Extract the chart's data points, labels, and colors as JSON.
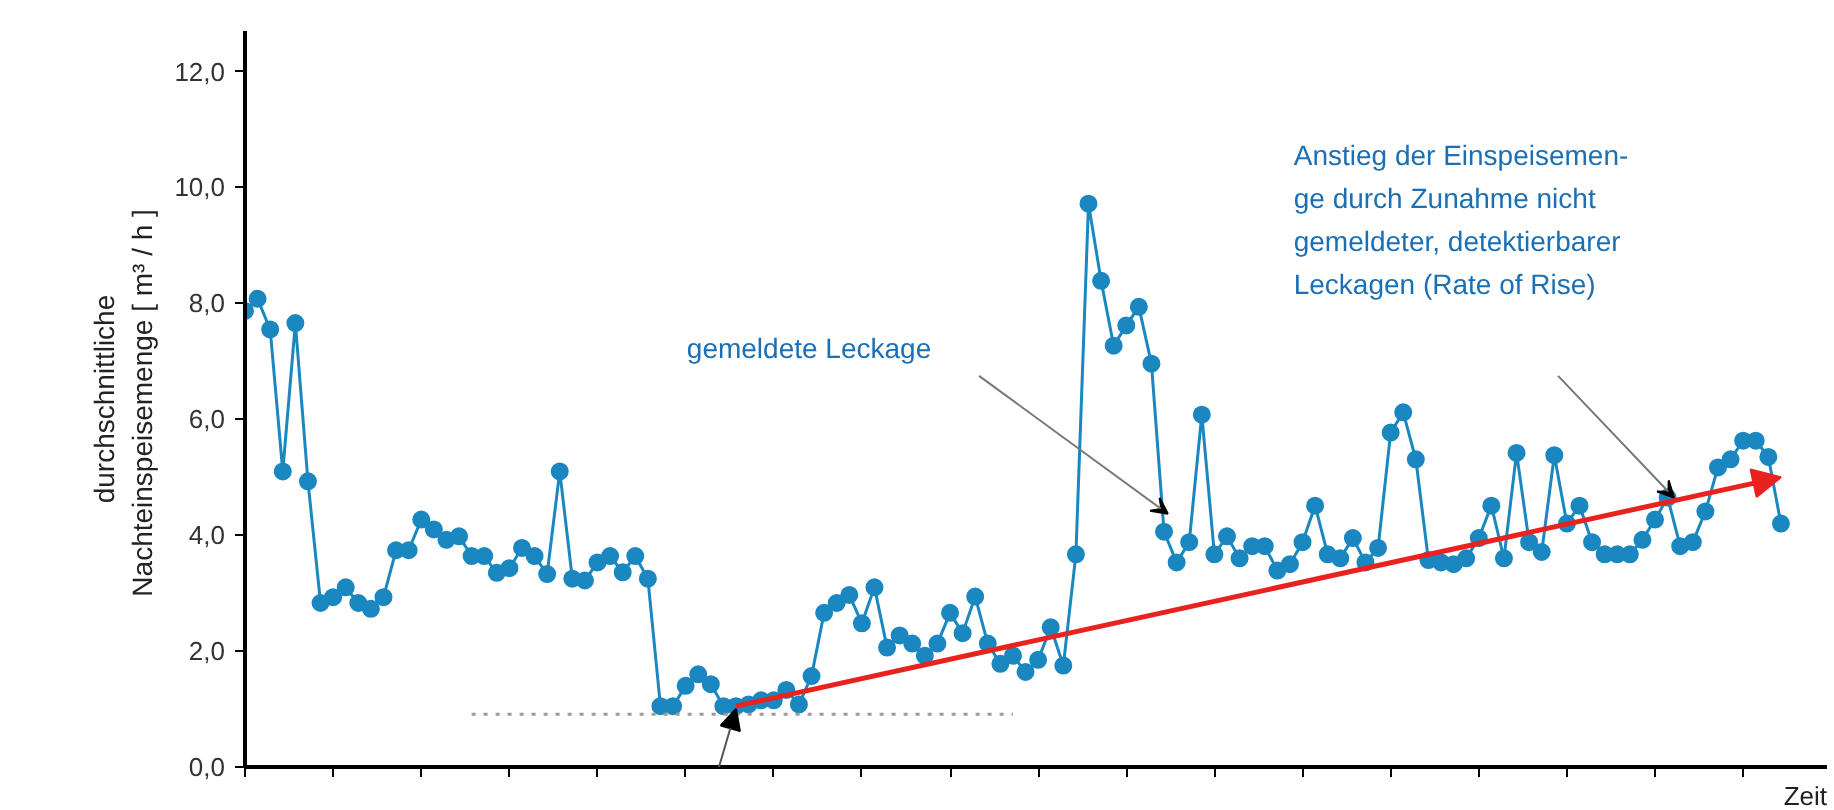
{
  "chart_data": {
    "type": "line",
    "ylabel": "durchschnittliche\nNachteinspeisemenge  [ m³ / h ]",
    "xlabel": "Zeit",
    "categories": [
      null,
      null,
      null,
      null,
      null,
      null,
      null,
      null,
      null,
      null,
      null,
      null,
      null,
      null,
      null,
      null,
      null,
      null,
      null,
      null,
      null,
      null,
      null,
      null,
      null,
      null,
      null,
      null,
      null,
      null,
      null,
      null,
      null,
      null,
      null,
      null,
      null,
      null,
      null,
      null,
      null,
      null,
      null,
      null,
      null,
      null,
      null,
      null,
      null,
      null,
      null,
      null,
      null,
      null,
      null,
      null,
      null,
      null,
      null,
      null,
      null,
      null,
      null,
      null,
      null,
      null,
      null,
      null,
      null,
      null,
      null,
      null,
      null,
      null,
      null,
      null,
      null,
      null,
      null,
      null,
      null,
      null,
      null,
      null,
      null,
      null,
      null,
      null,
      null,
      null,
      null,
      null,
      null,
      null,
      null,
      null,
      null,
      null,
      null,
      null,
      null,
      null,
      null,
      null,
      null,
      null,
      null,
      null,
      null,
      null,
      null,
      null,
      null,
      null,
      null,
      null,
      null,
      null,
      null,
      null,
      null,
      null,
      null
    ],
    "series": [
      {
        "color": "#1a87c0",
        "values": [
          7.87,
          8.08,
          7.55,
          5.1,
          7.66,
          4.93,
          2.83,
          2.93,
          3.1,
          2.83,
          2.73,
          2.93,
          3.74,
          3.74,
          4.27,
          4.1,
          3.92,
          3.98,
          3.64,
          3.64,
          3.35,
          3.43,
          3.78,
          3.64,
          3.33,
          5.1,
          3.25,
          3.22,
          3.53,
          3.64,
          3.36,
          3.64,
          3.25,
          1.05,
          1.05,
          1.4,
          1.6,
          1.43,
          1.05,
          1.05,
          1.08,
          1.15,
          1.15,
          1.33,
          1.08,
          1.57,
          2.66,
          2.83,
          2.97,
          2.48,
          3.1,
          2.06,
          2.27,
          2.13,
          1.92,
          2.13,
          2.66,
          2.31,
          2.94,
          2.13,
          1.78,
          1.92,
          1.64,
          1.85,
          2.41,
          1.75,
          3.67,
          9.72,
          8.39,
          7.27,
          7.62,
          7.94,
          6.96,
          4.06,
          3.53,
          3.88,
          6.08,
          3.67,
          3.98,
          3.6,
          3.81,
          3.81,
          3.39,
          3.5,
          3.88,
          4.51,
          3.67,
          3.6,
          3.95,
          3.53,
          3.78,
          5.77,
          6.12,
          5.31,
          3.57,
          3.53,
          3.5,
          3.6,
          3.95,
          4.51,
          3.6,
          5.42,
          3.88,
          3.71,
          5.38,
          4.2,
          4.51,
          3.88,
          3.67,
          3.67,
          3.67,
          3.92,
          4.27,
          4.65,
          3.81,
          3.88,
          4.41,
          5.17,
          5.31,
          5.63,
          5.63,
          5.35,
          4.2
        ]
      },
      {
        "color": "#999999",
        "marker": "none",
        "line_style": "dotted",
        "values": [
          null,
          null,
          null,
          null,
          null,
          null,
          null,
          null,
          null,
          null,
          null,
          null,
          null,
          null,
          null,
          null,
          null,
          null,
          0.91,
          null,
          null,
          null,
          null,
          null,
          null,
          null,
          null,
          null,
          null,
          null,
          null,
          null,
          null,
          null,
          null,
          null,
          null,
          null,
          null,
          null,
          null,
          null,
          null,
          null,
          null,
          null,
          null,
          null,
          null,
          null,
          null,
          null,
          null,
          null,
          null,
          null,
          null,
          null,
          null,
          null,
          null,
          0.91,
          null,
          null,
          null,
          null,
          null,
          null,
          null,
          null,
          null,
          null,
          null,
          null,
          null,
          null,
          null,
          null,
          null,
          null,
          null,
          null,
          null,
          null,
          null,
          null,
          null,
          null,
          null,
          null,
          null,
          null,
          null,
          null,
          null,
          null,
          null,
          null,
          null,
          null,
          null,
          null,
          null,
          null,
          null,
          null,
          null,
          null,
          null,
          null,
          null,
          null,
          null,
          null,
          null,
          null,
          null,
          null,
          null,
          null,
          null,
          null,
          null
        ]
      }
    ],
    "annotations": [
      "gemeldete Leckage",
      "Anstieg der Einspeisemen-\nge durch Zunahme nicht\ngemeldeter, detektierbarer\nLeckagen (Rate of Rise)"
    ],
    "ylim": [
      0,
      12.7
    ],
    "yticks": [
      {
        "value": 0,
        "label": "0,0"
      },
      {
        "value": 2,
        "label": "2,0"
      },
      {
        "value": 4,
        "label": "4,0"
      },
      {
        "value": 6,
        "label": "6,0"
      },
      {
        "value": 8,
        "label": "8,0"
      },
      {
        "value": 10,
        "label": "10,0"
      },
      {
        "value": 12,
        "label": "12,0"
      }
    ],
    "grid": false,
    "marker": "circle",
    "line_style": "solid"
  }
}
